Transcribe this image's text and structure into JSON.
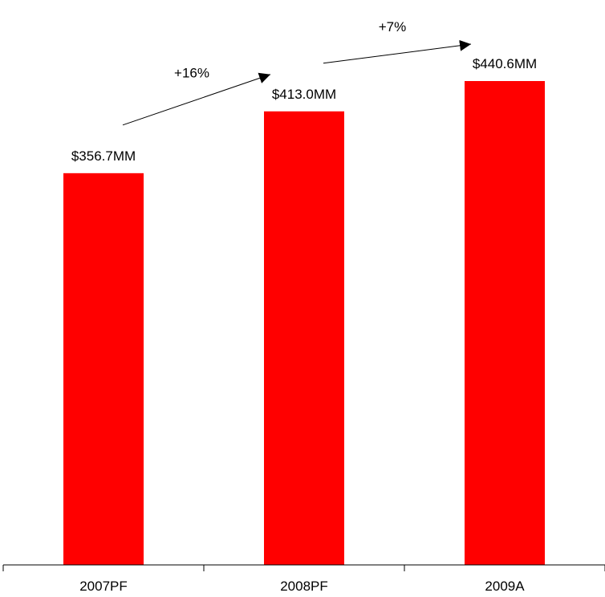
{
  "chart_data": {
    "type": "bar",
    "categories": [
      "2007PF",
      "2008PF",
      "2009A"
    ],
    "values": [
      356.7,
      413.0,
      440.6
    ],
    "data_labels": [
      "$356.7MM",
      "$413.0MM",
      "$440.6MM"
    ],
    "annotations": [
      {
        "from": "2007PF",
        "to": "2008PF",
        "text": "+16%"
      },
      {
        "from": "2008PF",
        "to": "2009A",
        "text": "+7%"
      }
    ],
    "colors": {
      "bar": "#ff0000",
      "axis": "#000000"
    },
    "ylim": [
      0,
      440.6
    ],
    "grid": false,
    "legend": "none"
  }
}
